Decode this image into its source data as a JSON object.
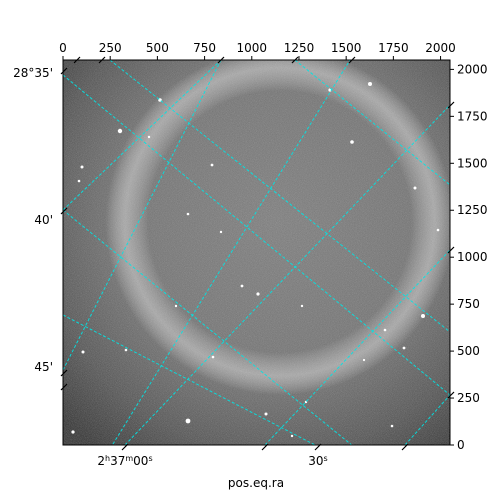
{
  "chart_data": {
    "type": "image",
    "title": "",
    "xlabel": "pos.eq.ra",
    "ylabel": "",
    "pixel_axes": {
      "x_range": [
        0,
        2050
      ],
      "y_range": [
        0,
        2050
      ],
      "top_ticks": [
        "0",
        "250",
        "500",
        "750",
        "1000",
        "1250",
        "1500",
        "1750",
        "2000"
      ],
      "right_ticks": [
        "0",
        "250",
        "500",
        "750",
        "1000",
        "1250",
        "1500",
        "1750",
        "2000"
      ]
    },
    "world_axes": {
      "ra_ticks": [
        {
          "label_main": "2",
          "sup1": "h",
          "mid": "37",
          "sup2": "m",
          "end": "00",
          "sup3": "s"
        },
        {
          "label_main": "",
          "sup1": "",
          "mid": "",
          "sup2": "",
          "end": "30",
          "sup3": "s"
        }
      ],
      "dec_ticks": [
        "28°35'",
        "40'",
        "45'"
      ]
    },
    "grid": true,
    "grid_color": "#00e5e5",
    "colormap": "gray"
  }
}
